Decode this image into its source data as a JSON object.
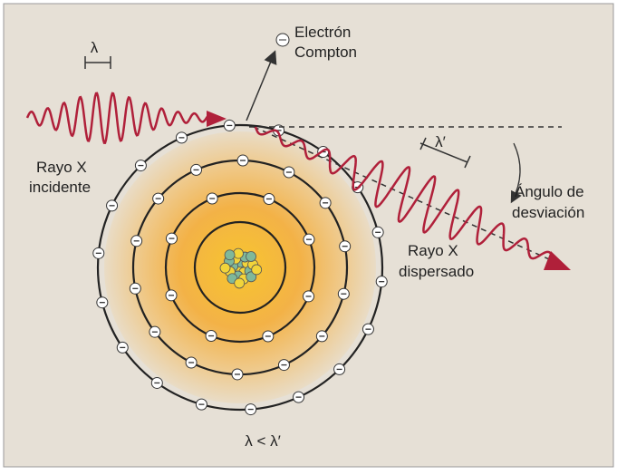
{
  "labels": {
    "lambda": "λ",
    "electron": [
      "Electrón",
      "Compton"
    ],
    "incident": [
      "Rayo X",
      "incidente"
    ],
    "scattered": [
      "Rayo X",
      "dispersado"
    ],
    "lambda_prime": "λ′",
    "angle": [
      "Ángulo de",
      "desviación"
    ],
    "relation": "λ < λ′"
  }
}
